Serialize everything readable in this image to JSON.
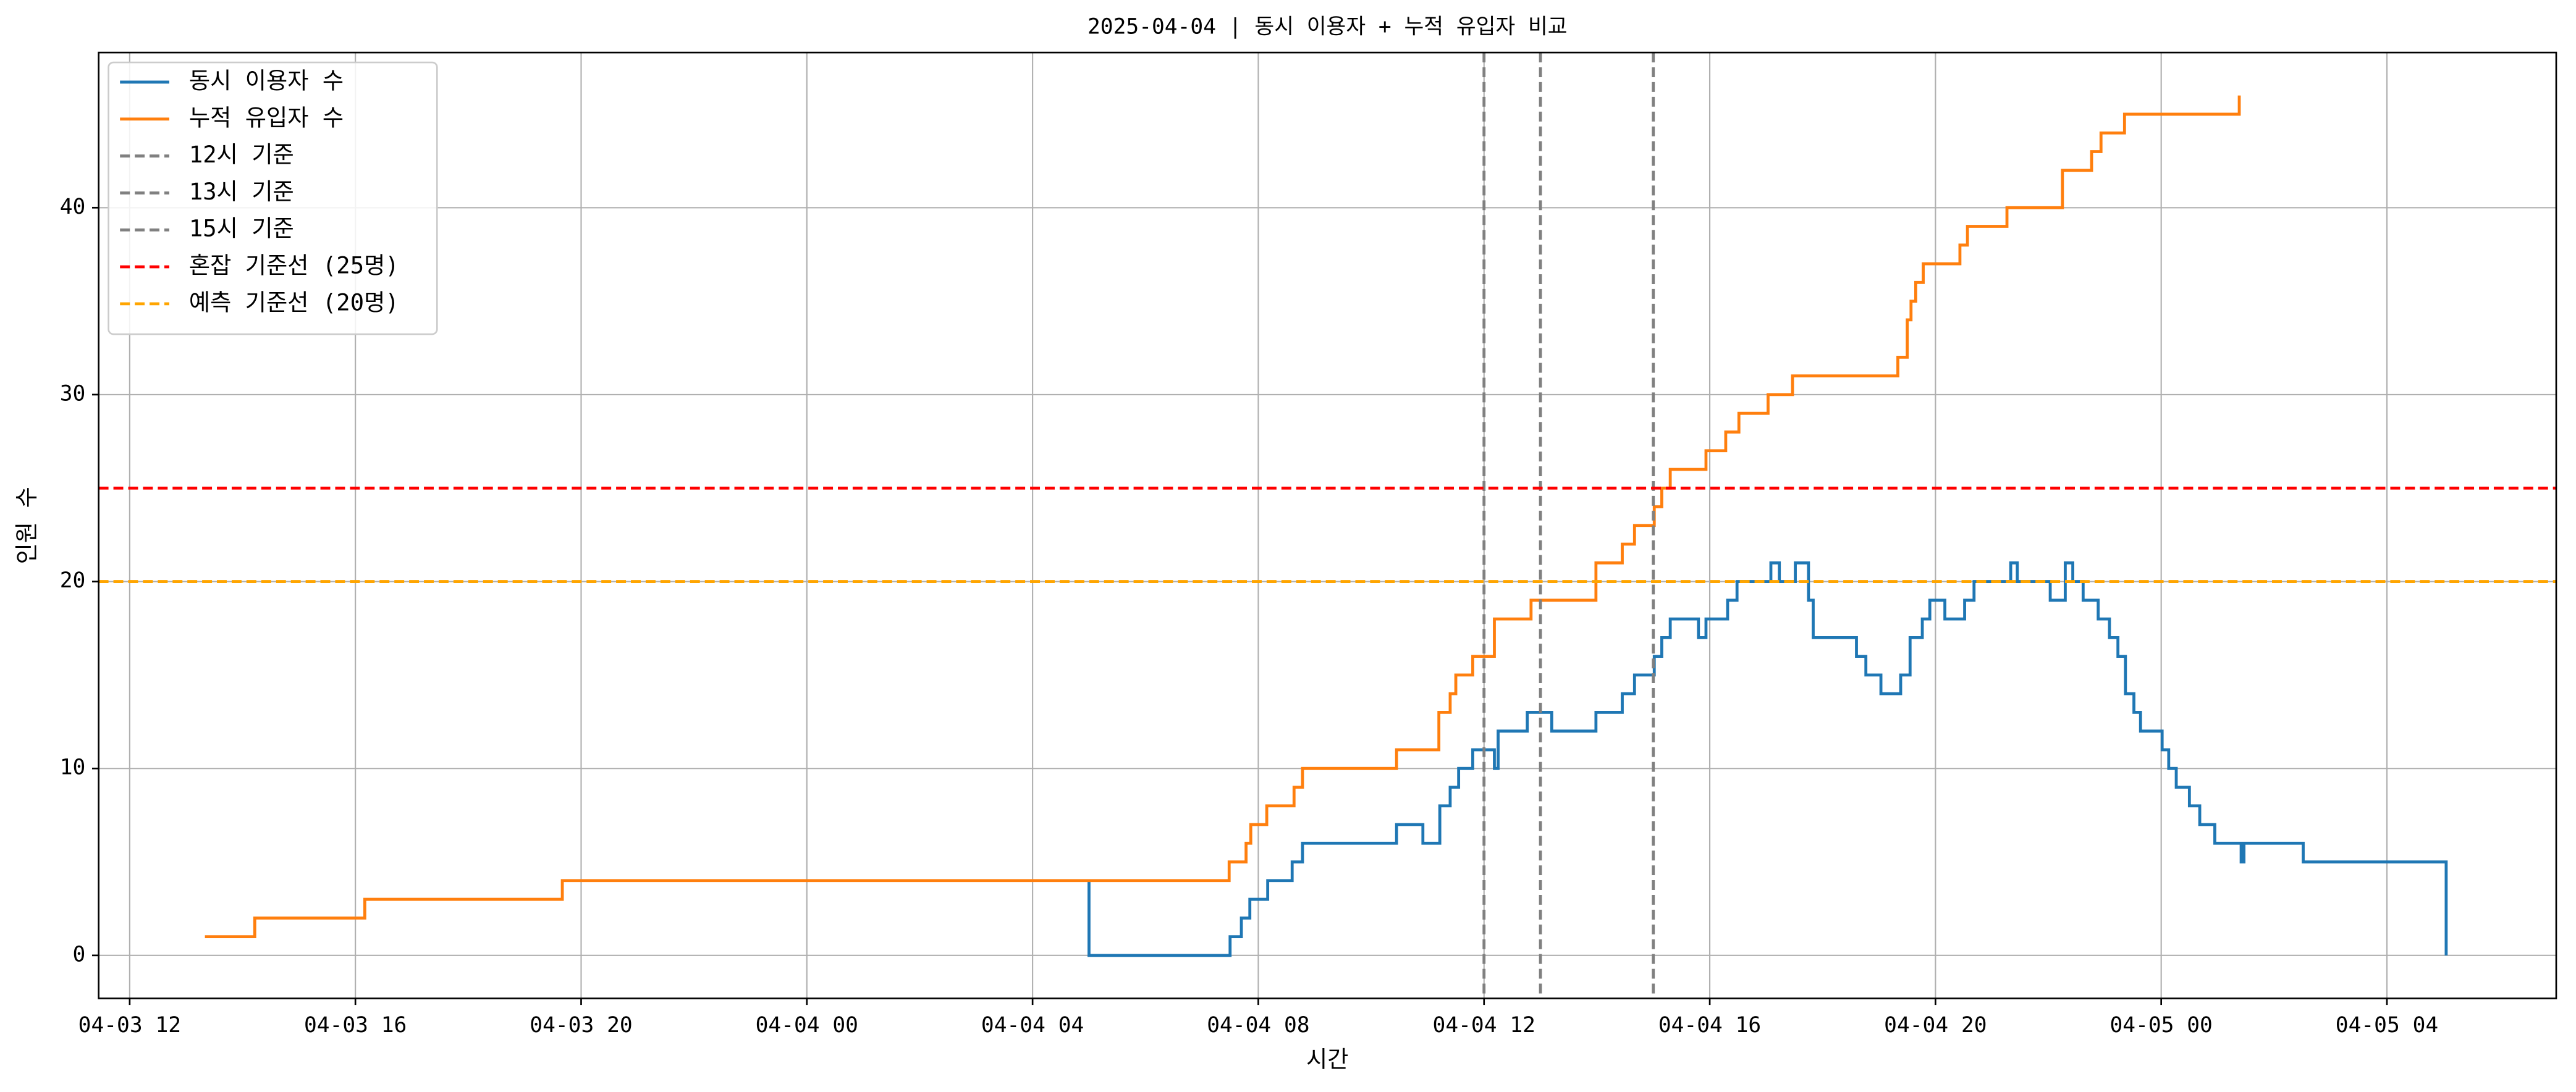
{
  "chart_data": {
    "type": "step-line",
    "title": "2025-04-04 | 동시 이용자 + 누적 유입자 비교",
    "xlabel": "시간",
    "ylabel": "인원 수",
    "xlim": [
      "04-03 11:27",
      "04-05 07:00"
    ],
    "xticks": [
      "04-03 12",
      "04-03 16",
      "04-03 20",
      "04-04 00",
      "04-04 04",
      "04-04 08",
      "04-04 12",
      "04-04 16",
      "04-04 20",
      "04-05 00",
      "04-05 04"
    ],
    "ylim": [
      -2.3,
      48.3
    ],
    "yticks": [
      0,
      10,
      20,
      30,
      40
    ],
    "grid": true,
    "legend": "upper left",
    "series": [
      {
        "name": "동시 이용자 수",
        "color": "#1f77b4",
        "x": [
          "04-04 05:00",
          "04-04 05:00",
          "04-04 07:30",
          "04-04 07:42",
          "04-04 07:51",
          "04-04 08:10",
          "04-04 08:36",
          "04-04 08:47",
          "04-04 10:27",
          "04-04 10:55",
          "04-04 11:13",
          "04-04 11:24",
          "04-04 11:33",
          "04-04 11:48",
          "04-04 12:11",
          "04-04 12:15",
          "04-04 12:46",
          "04-04 13:12",
          "04-04 13:59",
          "04-04 14:27",
          "04-04 14:40",
          "04-04 15:01",
          "04-04 15:09",
          "04-04 15:18",
          "04-04 15:48",
          "04-04 15:56",
          "04-04 16:19",
          "04-04 16:29",
          "04-04 17:05",
          "04-04 17:14",
          "04-04 17:31",
          "04-04 17:45",
          "04-04 17:50",
          "04-04 18:36",
          "04-04 18:46",
          "04-04 19:02",
          "04-04 19:23",
          "04-04 19:33",
          "04-04 19:46",
          "04-04 19:54",
          "04-04 20:10",
          "04-04 20:31",
          "04-04 20:41",
          "04-04 21:20",
          "04-04 21:27",
          "04-04 22:02",
          "04-04 22:18",
          "04-04 22:26",
          "04-04 22:37",
          "04-04 22:53",
          "04-04 23:05",
          "04-04 23:14",
          "04-04 23:22",
          "04-04 23:31",
          "04-04 23:38",
          "04-05 00:01",
          "04-05 00:08",
          "04-05 00:16",
          "04-05 00:30",
          "04-05 00:41",
          "04-05 00:57",
          "04-05 01:25",
          "04-05 01:28",
          "04-05 02:31",
          "04-05 05:03"
        ],
        "values": [
          4,
          0,
          1,
          2,
          3,
          4,
          5,
          6,
          7,
          6,
          8,
          9,
          10,
          11,
          10,
          12,
          13,
          12,
          13,
          14,
          15,
          16,
          17,
          18,
          17,
          18,
          19,
          20,
          21,
          20,
          21,
          19,
          17,
          16,
          15,
          14,
          15,
          17,
          18,
          19,
          18,
          19,
          20,
          21,
          20,
          19,
          21,
          20,
          19,
          18,
          17,
          16,
          14,
          13,
          12,
          11,
          10,
          9,
          8,
          7,
          6,
          5,
          6,
          5,
          0
        ]
      },
      {
        "name": "누적 유입자 수",
        "color": "#ff7f0e",
        "x": [
          "04-03 13:20",
          "04-03 14:13",
          "04-03 16:10",
          "04-03 19:40",
          "04-04 07:29",
          "04-04 07:47",
          "04-04 07:52",
          "04-04 08:09",
          "04-04 08:38",
          "04-04 08:47",
          "04-04 10:27",
          "04-04 11:12",
          "04-04 11:24",
          "04-04 11:30",
          "04-04 11:48",
          "04-04 12:11",
          "04-04 12:50",
          "04-04 13:59",
          "04-04 14:27",
          "04-04 14:40",
          "04-04 15:01",
          "04-04 15:09",
          "04-04 15:18",
          "04-04 15:56",
          "04-04 16:17",
          "04-04 16:31",
          "04-04 17:02",
          "04-04 17:28",
          "04-04 19:20",
          "04-04 19:30",
          "04-04 19:34",
          "04-04 19:39",
          "04-04 19:47",
          "04-04 20:26",
          "04-04 20:34",
          "04-04 21:16",
          "04-04 22:15",
          "04-04 22:46",
          "04-04 22:56",
          "04-04 23:21",
          "04-05 01:23"
        ],
        "values": [
          1,
          2,
          3,
          4,
          5,
          6,
          7,
          8,
          9,
          10,
          11,
          13,
          14,
          15,
          16,
          18,
          19,
          21,
          22,
          23,
          24,
          25,
          26,
          27,
          28,
          29,
          30,
          31,
          32,
          34,
          35,
          36,
          37,
          38,
          39,
          40,
          42,
          43,
          44,
          45,
          46
        ]
      }
    ],
    "vlines": [
      {
        "name": "12시 기준",
        "x": "04-04 12:00",
        "color": "#808080"
      },
      {
        "name": "13시 기준",
        "x": "04-04 13:00",
        "color": "#808080"
      },
      {
        "name": "15시 기준",
        "x": "04-04 15:00",
        "color": "#808080"
      }
    ],
    "hlines": [
      {
        "name": "혼잡 기준선 (25명)",
        "y": 25,
        "color": "#ff0000"
      },
      {
        "name": "예측 기준선 (20명)",
        "y": 20,
        "color": "#ffa500"
      }
    ]
  }
}
